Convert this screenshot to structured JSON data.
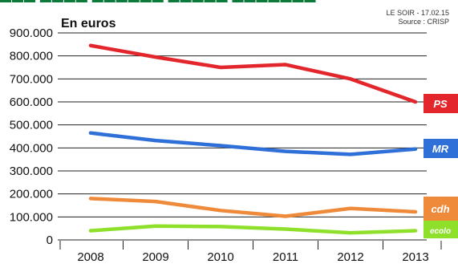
{
  "chart_data": {
    "type": "line",
    "unit_label": "En euros",
    "source_line1": "LE SOIR - 17.02.15",
    "source_line2": "Source : CRISP",
    "categories": [
      "2008",
      "2009",
      "2010",
      "2011",
      "2012",
      "2013"
    ],
    "y_ticks": [
      "900.000",
      "800.000",
      "700.000",
      "600.000",
      "500.000",
      "400.000",
      "300.000",
      "200.000",
      "100.000",
      "0"
    ],
    "ylim": [
      0,
      900000
    ],
    "grid": true,
    "series": [
      {
        "name": "PS",
        "color": "#e3262b",
        "values": [
          845000,
          795000,
          750000,
          762000,
          700000,
          600000
        ]
      },
      {
        "name": "MR",
        "color": "#2f6fd8",
        "values": [
          465000,
          432000,
          410000,
          385000,
          372000,
          395000
        ]
      },
      {
        "name": "cdh",
        "color": "#ee8a3a",
        "values": [
          180000,
          167000,
          128000,
          103000,
          137000,
          122000
        ]
      },
      {
        "name": "ecolo",
        "color": "#8ee02a",
        "values": [
          40000,
          60000,
          58000,
          47000,
          31000,
          40000
        ]
      }
    ]
  }
}
